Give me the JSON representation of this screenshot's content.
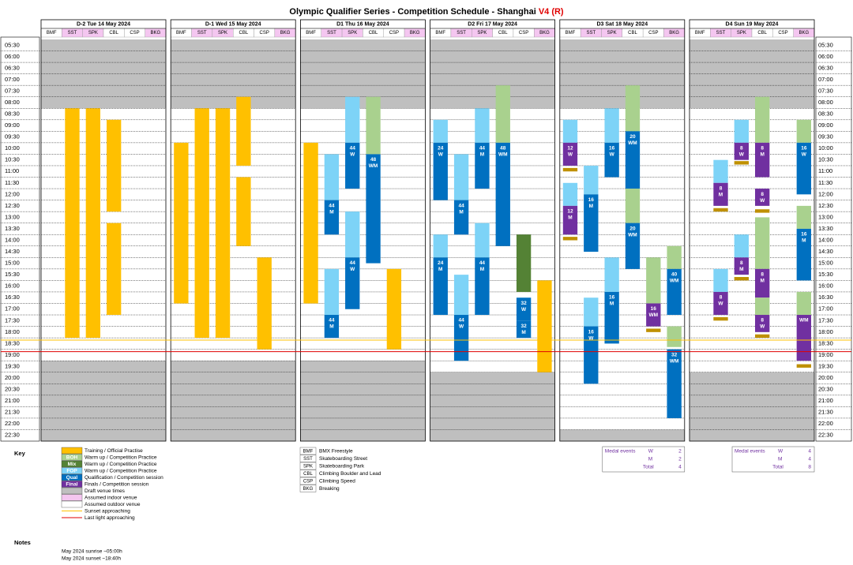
{
  "header": {
    "title": "Olympic Qualifier Series - Competition Schedule - Shanghai",
    "version": "V4 (R)"
  },
  "times": [
    "05:30",
    "06:00",
    "06:30",
    "07:00",
    "07:30",
    "08:00",
    "08:30",
    "09:00",
    "09:30",
    "10:00",
    "10:30",
    "11:00",
    "11:30",
    "12:00",
    "12:30",
    "13:00",
    "13:30",
    "14:00",
    "14:30",
    "15:00",
    "15:30",
    "16:00",
    "16:30",
    "17:00",
    "17:30",
    "18:00",
    "18:30",
    "19:00",
    "19:30",
    "20:00",
    "20:30",
    "21:00",
    "21:30",
    "22:00",
    "22:30"
  ],
  "time_range": [
    5.5,
    23
  ],
  "draft_until": 8.5,
  "sunset_line": 18.6,
  "last_light_line": 19.1,
  "sunset_color": "#FFC000",
  "last_light_color": "#E00000",
  "venue_indoor": [
    false,
    true,
    true,
    false,
    false,
    true
  ],
  "indoor_color": "#F4C6F0",
  "draft_color": "#BFBFBF",
  "abbreviations": [
    {
      "code": "BMF",
      "name": "BMX Freestyle"
    },
    {
      "code": "SST",
      "name": "Skateboarding Street"
    },
    {
      "code": "SPK",
      "name": "Skateboarding Park"
    },
    {
      "code": "CBL",
      "name": "Climbing Boulder and Lead"
    },
    {
      "code": "CSP",
      "name": "Climbing Speed"
    },
    {
      "code": "BKG",
      "name": "Breaking"
    }
  ],
  "days": [
    {
      "title": "D-2 Tue 14 May 2024",
      "draft_from": 19.5,
      "blocks": [
        {
          "venue": 1,
          "start": 8.5,
          "end": 18.5,
          "color": "#FFC000"
        },
        {
          "venue": 2,
          "start": 8.5,
          "end": 18.5,
          "color": "#FFC000"
        },
        {
          "venue": 3,
          "start": 9,
          "end": 13,
          "color": "#FFC000"
        },
        {
          "venue": 3,
          "start": 13.5,
          "end": 17.5,
          "color": "#FFC000"
        }
      ]
    },
    {
      "title": "D-1 Wed 15 May 2024",
      "draft_from": 19.5,
      "blocks": [
        {
          "venue": 0,
          "start": 10,
          "end": 17,
          "color": "#FFC000"
        },
        {
          "venue": 1,
          "start": 8.5,
          "end": 18.5,
          "color": "#FFC000"
        },
        {
          "venue": 2,
          "start": 8.5,
          "end": 18.5,
          "color": "#FFC000"
        },
        {
          "venue": 3,
          "start": 8,
          "end": 11,
          "color": "#FFC000"
        },
        {
          "venue": 3,
          "start": 11.5,
          "end": 14.5,
          "color": "#FFC000"
        },
        {
          "venue": 4,
          "start": 15,
          "end": 19,
          "color": "#FFC000"
        }
      ]
    },
    {
      "title": "D1 Thu 16 May 2024",
      "draft_from": 19.5,
      "blocks": [
        {
          "venue": 0,
          "start": 10,
          "end": 17,
          "color": "#FFC000"
        },
        {
          "venue": 1,
          "start": 10.5,
          "end": 12.5,
          "color": "#7DD3F7"
        },
        {
          "venue": 1,
          "start": 12.5,
          "end": 14,
          "color": "#0070C0",
          "label": [
            "44",
            "M"
          ]
        },
        {
          "venue": 1,
          "start": 15.5,
          "end": 17.5,
          "color": "#7DD3F7"
        },
        {
          "venue": 1,
          "start": 17.5,
          "end": 18.5,
          "color": "#0070C0",
          "label": [
            "44",
            "M"
          ]
        },
        {
          "venue": 2,
          "start": 8,
          "end": 10,
          "color": "#7DD3F7"
        },
        {
          "venue": 2,
          "start": 10,
          "end": 12,
          "color": "#0070C0",
          "label": [
            "44",
            "W"
          ]
        },
        {
          "venue": 2,
          "start": 13,
          "end": 15,
          "color": "#7DD3F7"
        },
        {
          "venue": 2,
          "start": 15,
          "end": 17.25,
          "color": "#0070C0",
          "label": [
            "44",
            "W"
          ]
        },
        {
          "venue": 3,
          "start": 8,
          "end": 10.5,
          "color": "#A9D18E"
        },
        {
          "venue": 3,
          "start": 10.5,
          "end": 15.25,
          "color": "#0070C0",
          "label": [
            "48",
            "WM"
          ]
        },
        {
          "venue": 4,
          "start": 15.5,
          "end": 19,
          "color": "#FFC000"
        }
      ]
    },
    {
      "title": "D2 Fri 17 May 2024",
      "draft_from": 20,
      "blocks": [
        {
          "venue": 0,
          "start": 9,
          "end": 10,
          "color": "#7DD3F7"
        },
        {
          "venue": 0,
          "start": 10,
          "end": 12.5,
          "color": "#0070C0",
          "label": [
            "24",
            "W"
          ]
        },
        {
          "venue": 0,
          "start": 14,
          "end": 15,
          "color": "#7DD3F7"
        },
        {
          "venue": 0,
          "start": 15,
          "end": 17.5,
          "color": "#0070C0",
          "label": [
            "24",
            "M"
          ]
        },
        {
          "venue": 1,
          "start": 10.5,
          "end": 12.5,
          "color": "#7DD3F7"
        },
        {
          "venue": 1,
          "start": 12.5,
          "end": 14,
          "color": "#0070C0",
          "label": [
            "44",
            "M"
          ]
        },
        {
          "venue": 1,
          "start": 15.75,
          "end": 17.5,
          "color": "#7DD3F7"
        },
        {
          "venue": 1,
          "start": 17.5,
          "end": 19.5,
          "color": "#0070C0",
          "label": [
            "44",
            "W"
          ]
        },
        {
          "venue": 2,
          "start": 8.5,
          "end": 10,
          "color": "#7DD3F7"
        },
        {
          "venue": 2,
          "start": 10,
          "end": 12,
          "color": "#0070C0",
          "label": [
            "44",
            "M"
          ]
        },
        {
          "venue": 2,
          "start": 13.5,
          "end": 15,
          "color": "#7DD3F7"
        },
        {
          "venue": 2,
          "start": 15,
          "end": 17.5,
          "color": "#0070C0",
          "label": [
            "44",
            "M"
          ]
        },
        {
          "venue": 3,
          "start": 7.5,
          "end": 10,
          "color": "#A9D18E"
        },
        {
          "venue": 3,
          "start": 10,
          "end": 14.5,
          "color": "#0070C0",
          "label": [
            "48",
            "WM"
          ]
        },
        {
          "venue": 4,
          "start": 14,
          "end": 16.5,
          "color": "#548235"
        },
        {
          "venue": 4,
          "start": 16.75,
          "end": 17.75,
          "color": "#0070C0",
          "label": [
            "32",
            "W"
          ]
        },
        {
          "venue": 4,
          "start": 17.75,
          "end": 18.5,
          "color": "#0070C0",
          "label": [
            "32",
            "M"
          ]
        },
        {
          "venue": 5,
          "start": 16,
          "end": 20,
          "color": "#FFC000"
        }
      ]
    },
    {
      "title": "D3 Sat 18 May 2024",
      "draft_from": 22.5,
      "medals": {
        "title": "Medal events",
        "rows": [
          {
            "name": "W",
            "value": 2
          },
          {
            "name": "M",
            "value": 2
          },
          {
            "name": "Total",
            "value": 4
          }
        ]
      },
      "blocks": [
        {
          "venue": 0,
          "start": 9,
          "end": 10,
          "color": "#7DD3F7"
        },
        {
          "venue": 0,
          "start": 10,
          "end": 11,
          "color": "#7030A0",
          "label": [
            "12",
            "W"
          ]
        },
        {
          "venue": 0,
          "start": 11.1,
          "end": 11.25,
          "color": "#BF9000"
        },
        {
          "venue": 0,
          "start": 11.75,
          "end": 12.75,
          "color": "#7DD3F7"
        },
        {
          "venue": 0,
          "start": 12.75,
          "end": 14,
          "color": "#7030A0",
          "label": [
            "12",
            "M"
          ]
        },
        {
          "venue": 0,
          "start": 14.1,
          "end": 14.25,
          "color": "#BF9000"
        },
        {
          "venue": 1,
          "start": 11,
          "end": 12.25,
          "color": "#7DD3F7"
        },
        {
          "venue": 1,
          "start": 12.25,
          "end": 14.75,
          "color": "#0070C0",
          "label": [
            "16",
            "M"
          ]
        },
        {
          "venue": 1,
          "start": 16.75,
          "end": 18,
          "color": "#7DD3F7"
        },
        {
          "venue": 1,
          "start": 18,
          "end": 20.5,
          "color": "#0070C0",
          "label": [
            "16",
            "W"
          ]
        },
        {
          "venue": 2,
          "start": 8.5,
          "end": 10,
          "color": "#7DD3F7"
        },
        {
          "venue": 2,
          "start": 10,
          "end": 11.5,
          "color": "#0070C0",
          "label": [
            "16",
            "W"
          ]
        },
        {
          "venue": 2,
          "start": 15,
          "end": 16.5,
          "color": "#7DD3F7"
        },
        {
          "venue": 2,
          "start": 16.5,
          "end": 18.75,
          "color": "#0070C0",
          "label": [
            "16",
            "M"
          ]
        },
        {
          "venue": 3,
          "start": 7.5,
          "end": 9.5,
          "color": "#A9D18E"
        },
        {
          "venue": 3,
          "start": 9.5,
          "end": 12,
          "color": "#0070C0",
          "label": [
            "20",
            "WM"
          ]
        },
        {
          "venue": 3,
          "start": 12,
          "end": 13.5,
          "color": "#A9D18E"
        },
        {
          "venue": 3,
          "start": 13.5,
          "end": 15.5,
          "color": "#0070C0",
          "label": [
            "20",
            "WM"
          ]
        },
        {
          "venue": 4,
          "start": 15,
          "end": 17,
          "color": "#A9D18E"
        },
        {
          "venue": 4,
          "start": 17,
          "end": 18,
          "color": "#7030A0",
          "label": [
            "16",
            "WM"
          ]
        },
        {
          "venue": 4,
          "start": 18.1,
          "end": 18.25,
          "color": "#BF9000"
        },
        {
          "venue": 5,
          "start": 14.5,
          "end": 15.5,
          "color": "#A9D18E"
        },
        {
          "venue": 5,
          "start": 15.5,
          "end": 17.5,
          "color": "#0070C0",
          "label": [
            "40",
            "WM"
          ]
        },
        {
          "venue": 5,
          "start": 18,
          "end": 18.9,
          "color": "#A9D18E"
        },
        {
          "venue": 5,
          "start": 19,
          "end": 22,
          "color": "#0070C0",
          "label": [
            "32",
            "WM"
          ]
        }
      ]
    },
    {
      "title": "D4 Sun 19 May 2024",
      "draft_from": 20,
      "medals": {
        "title": "Medal events",
        "rows": [
          {
            "name": "W",
            "value": 4
          },
          {
            "name": "M",
            "value": 4
          },
          {
            "name": "Total",
            "value": 8
          }
        ]
      },
      "blocks": [
        {
          "venue": 1,
          "start": 10.75,
          "end": 11.75,
          "color": "#7DD3F7"
        },
        {
          "venue": 1,
          "start": 11.75,
          "end": 12.75,
          "color": "#7030A0",
          "label": [
            "8",
            "M"
          ]
        },
        {
          "venue": 1,
          "start": 12.85,
          "end": 13,
          "color": "#BF9000"
        },
        {
          "venue": 1,
          "start": 15.5,
          "end": 16.5,
          "color": "#7DD3F7"
        },
        {
          "venue": 1,
          "start": 16.5,
          "end": 17.5,
          "color": "#7030A0",
          "label": [
            "8",
            "W"
          ]
        },
        {
          "venue": 1,
          "start": 17.6,
          "end": 17.75,
          "color": "#BF9000"
        },
        {
          "venue": 2,
          "start": 9,
          "end": 10,
          "color": "#7DD3F7"
        },
        {
          "venue": 2,
          "start": 10,
          "end": 10.75,
          "color": "#7030A0",
          "label": [
            "8",
            "W"
          ]
        },
        {
          "venue": 2,
          "start": 10.8,
          "end": 10.95,
          "color": "#BF9000"
        },
        {
          "venue": 2,
          "start": 14,
          "end": 15,
          "color": "#7DD3F7"
        },
        {
          "venue": 2,
          "start": 15,
          "end": 15.75,
          "color": "#7030A0",
          "label": [
            "8",
            "M"
          ]
        },
        {
          "venue": 2,
          "start": 15.85,
          "end": 16,
          "color": "#BF9000"
        },
        {
          "venue": 3,
          "start": 8,
          "end": 10,
          "color": "#A9D18E"
        },
        {
          "venue": 3,
          "start": 10,
          "end": 11.5,
          "color": "#7030A0",
          "label": [
            "8",
            "M"
          ]
        },
        {
          "venue": 3,
          "start": 12,
          "end": 12.75,
          "color": "#7030A0",
          "label": [
            "8",
            "W"
          ]
        },
        {
          "venue": 3,
          "start": 12.9,
          "end": 13.05,
          "color": "#BF9000"
        },
        {
          "venue": 3,
          "start": 13.25,
          "end": 15.5,
          "color": "#A9D18E"
        },
        {
          "venue": 3,
          "start": 15.5,
          "end": 16.75,
          "color": "#7030A0",
          "label": [
            "8",
            "M"
          ]
        },
        {
          "venue": 3,
          "start": 16.75,
          "end": 17.5,
          "color": "#A9D18E"
        },
        {
          "venue": 3,
          "start": 17.5,
          "end": 18.25,
          "color": "#7030A0",
          "label": [
            "8",
            "W"
          ]
        },
        {
          "venue": 3,
          "start": 18.35,
          "end": 18.5,
          "color": "#BF9000"
        },
        {
          "venue": 5,
          "start": 9,
          "end": 10,
          "color": "#A9D18E"
        },
        {
          "venue": 5,
          "start": 10,
          "end": 12.25,
          "color": "#0070C0",
          "label": [
            "16",
            "W"
          ]
        },
        {
          "venue": 5,
          "start": 12.75,
          "end": 13.75,
          "color": "#A9D18E"
        },
        {
          "venue": 5,
          "start": 13.75,
          "end": 16,
          "color": "#0070C0",
          "label": [
            "16",
            "M"
          ]
        },
        {
          "venue": 5,
          "start": 16.5,
          "end": 17.5,
          "color": "#A9D18E"
        },
        {
          "venue": 5,
          "start": 17.5,
          "end": 19.5,
          "color": "#7030A0",
          "label": [
            "WM"
          ]
        },
        {
          "venue": 5,
          "start": 19.65,
          "end": 19.8,
          "color": "#BF9000"
        }
      ]
    }
  ],
  "key": {
    "title": "Key",
    "items": [
      {
        "color": "#FFC000",
        "text": "Training / Official Practise"
      },
      {
        "color": "#A9D18E",
        "swatch": "BOH",
        "text": "Warm up / Competition Practice"
      },
      {
        "color": "#548235",
        "swatch": "Mix",
        "text": "Warm up / Competition Practice"
      },
      {
        "color": "#7DD3F7",
        "swatch": "FOP",
        "text": "Warm up / Competition Practice"
      },
      {
        "color": "#0070C0",
        "swatch": "Qual",
        "text": "Qualification / Competition session"
      },
      {
        "color": "#7030A0",
        "swatch": "Final",
        "text": "Finals / Competition session"
      },
      {
        "color": "#BFBFBF",
        "text": "Draft venue times"
      },
      {
        "color": "#F4C6F0",
        "text": "Assumed indoor venue"
      },
      {
        "color": "#FFFFFF",
        "text": "Assumed outdoor venue"
      },
      {
        "line": "#FFC000",
        "text": "Sunset approaching"
      },
      {
        "line": "#E00000",
        "text": "Last light approaching"
      }
    ]
  },
  "notes": {
    "title": "Notes",
    "lines": [
      "May 2024 sunrise ~05:00h",
      "May 2024 sunset ~18:40h"
    ]
  }
}
